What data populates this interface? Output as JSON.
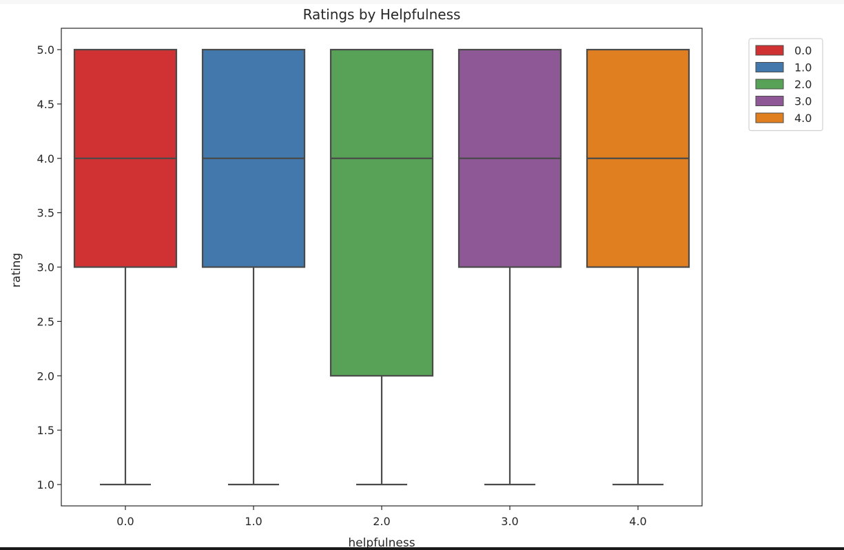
{
  "chart_data": {
    "type": "box",
    "title": "Ratings by Helpfulness",
    "xlabel": "helpfulness",
    "ylabel": "rating",
    "categories": [
      "0.0",
      "1.0",
      "2.0",
      "3.0",
      "4.0"
    ],
    "ylim": [
      0.9,
      5.1
    ],
    "yticks": [
      "1.0",
      "1.5",
      "2.0",
      "2.5",
      "3.0",
      "3.5",
      "4.0",
      "4.5",
      "5.0"
    ],
    "boxes": [
      {
        "category": "0.0",
        "whisker_low": 1.0,
        "q1": 3.0,
        "median": 4.0,
        "q3": 5.0,
        "whisker_high": 5.0,
        "color": "#d03132"
      },
      {
        "category": "1.0",
        "whisker_low": 1.0,
        "q1": 3.0,
        "median": 4.0,
        "q3": 5.0,
        "whisker_high": 5.0,
        "color": "#4278ab"
      },
      {
        "category": "2.0",
        "whisker_low": 1.0,
        "q1": 2.0,
        "median": 4.0,
        "q3": 5.0,
        "whisker_high": 5.0,
        "color": "#58a257"
      },
      {
        "category": "3.0",
        "whisker_low": 1.0,
        "q1": 3.0,
        "median": 4.0,
        "q3": 5.0,
        "whisker_high": 5.0,
        "color": "#8e5897"
      },
      {
        "category": "4.0",
        "whisker_low": 1.0,
        "q1": 3.0,
        "median": 4.0,
        "q3": 5.0,
        "whisker_high": 5.0,
        "color": "#e07f1f"
      }
    ],
    "legend": {
      "placement": "outside-top-right",
      "entries": [
        {
          "label": "0.0",
          "color": "#d03132"
        },
        {
          "label": "1.0",
          "color": "#4278ab"
        },
        {
          "label": "2.0",
          "color": "#58a257"
        },
        {
          "label": "3.0",
          "color": "#8e5897"
        },
        {
          "label": "4.0",
          "color": "#e07f1f"
        }
      ]
    },
    "grid": false
  },
  "colors": {
    "line": "#4a4a4a",
    "frame": "#262626",
    "text": "#262626"
  }
}
